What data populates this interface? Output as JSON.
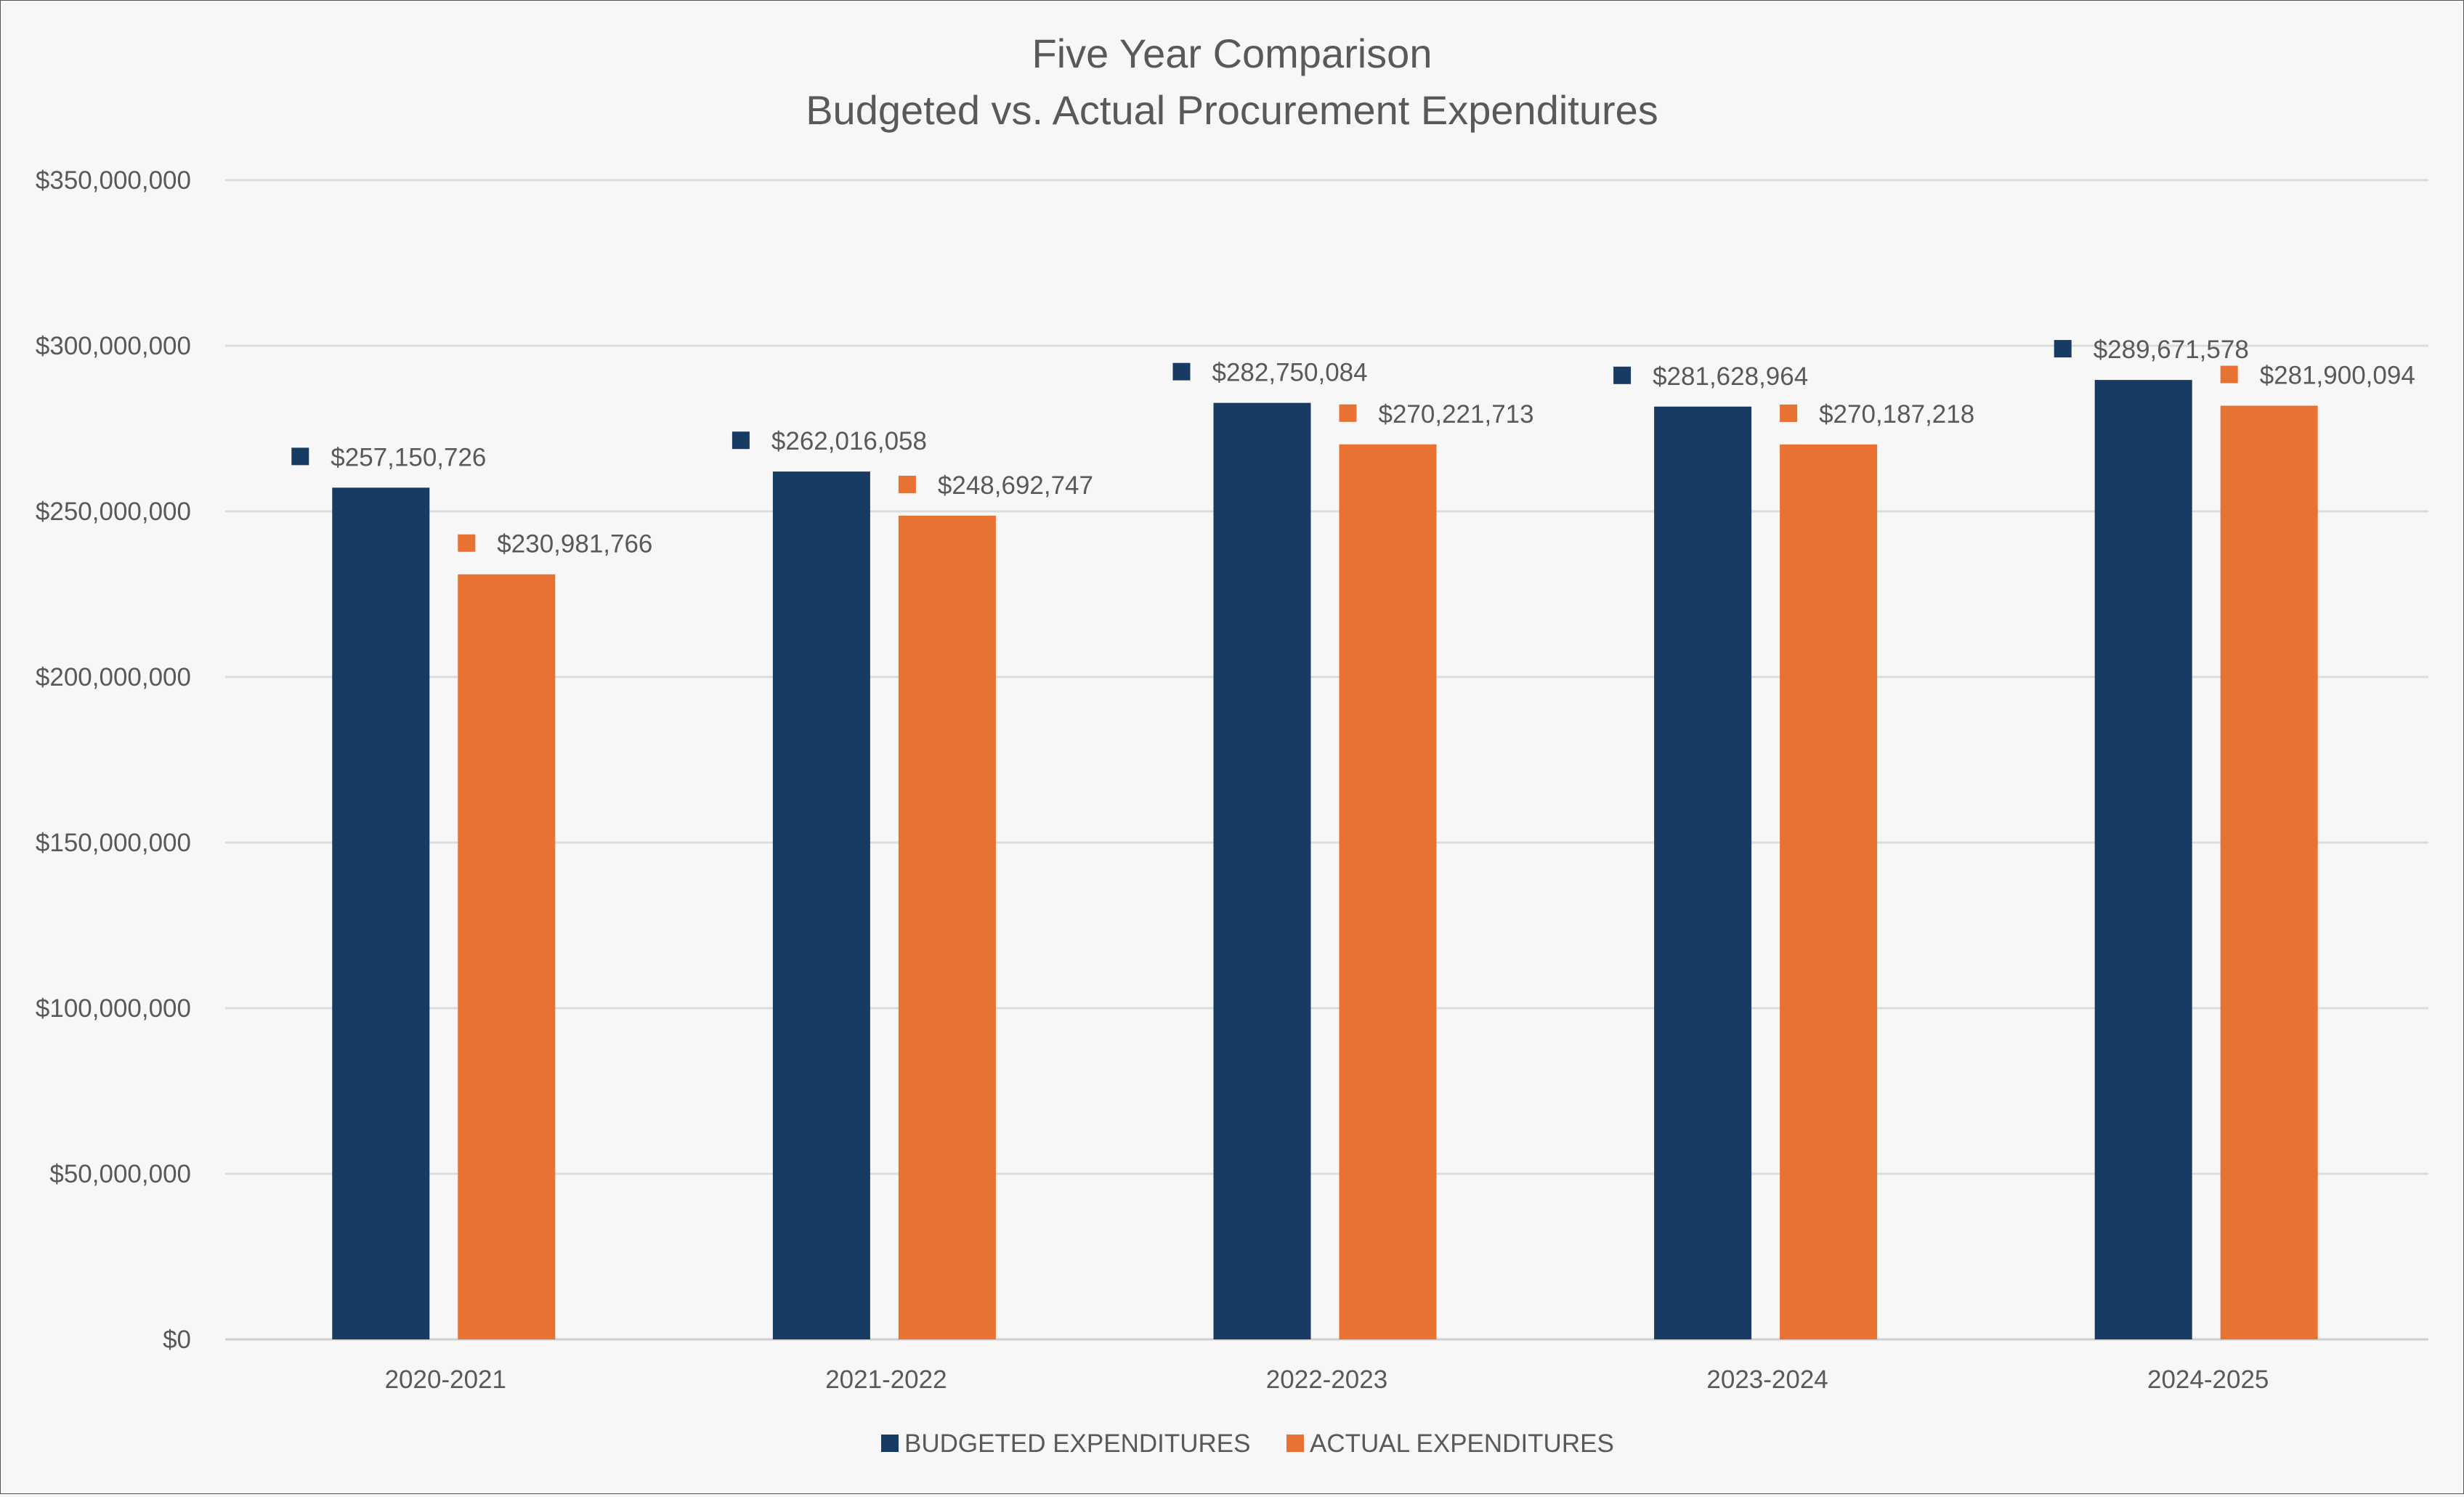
{
  "chart_data": {
    "type": "bar",
    "title": "Five Year Comparison",
    "subtitle": "Budgeted vs. Actual Procurement Expenditures",
    "xlabel": "",
    "ylabel": "",
    "categories": [
      "2020-2021",
      "2021-2022",
      "2022-2023",
      "2023-2024",
      "2024-2025"
    ],
    "series": [
      {
        "name": "BUDGETED EXPENDITURES",
        "color": "#173b62",
        "values": [
          257150726,
          262016058,
          282750084,
          281628964,
          289671578
        ],
        "labels": [
          "$257,150,726",
          "$262,016,058",
          "$282,750,084",
          "$281,628,964",
          "$289,671,578"
        ]
      },
      {
        "name": "ACTUAL EXPENDITURES",
        "color": "#e87232",
        "values": [
          230981766,
          248692747,
          270221713,
          270187218,
          281900094
        ],
        "labels": [
          "$230,981,766",
          "$248,692,747",
          "$270,221,713",
          "$270,187,218",
          "$281,900,094"
        ]
      }
    ],
    "ylim": [
      0,
      350000000
    ],
    "yticks": [
      0,
      50000000,
      100000000,
      150000000,
      200000000,
      250000000,
      300000000,
      350000000
    ],
    "ytick_labels": [
      "$0",
      "$50,000,000",
      "$100,000,000",
      "$150,000,000",
      "$200,000,000",
      "$250,000,000",
      "$300,000,000",
      "$350,000,000"
    ],
    "grid": true,
    "legend_position": "bottom",
    "data_labels": true
  }
}
